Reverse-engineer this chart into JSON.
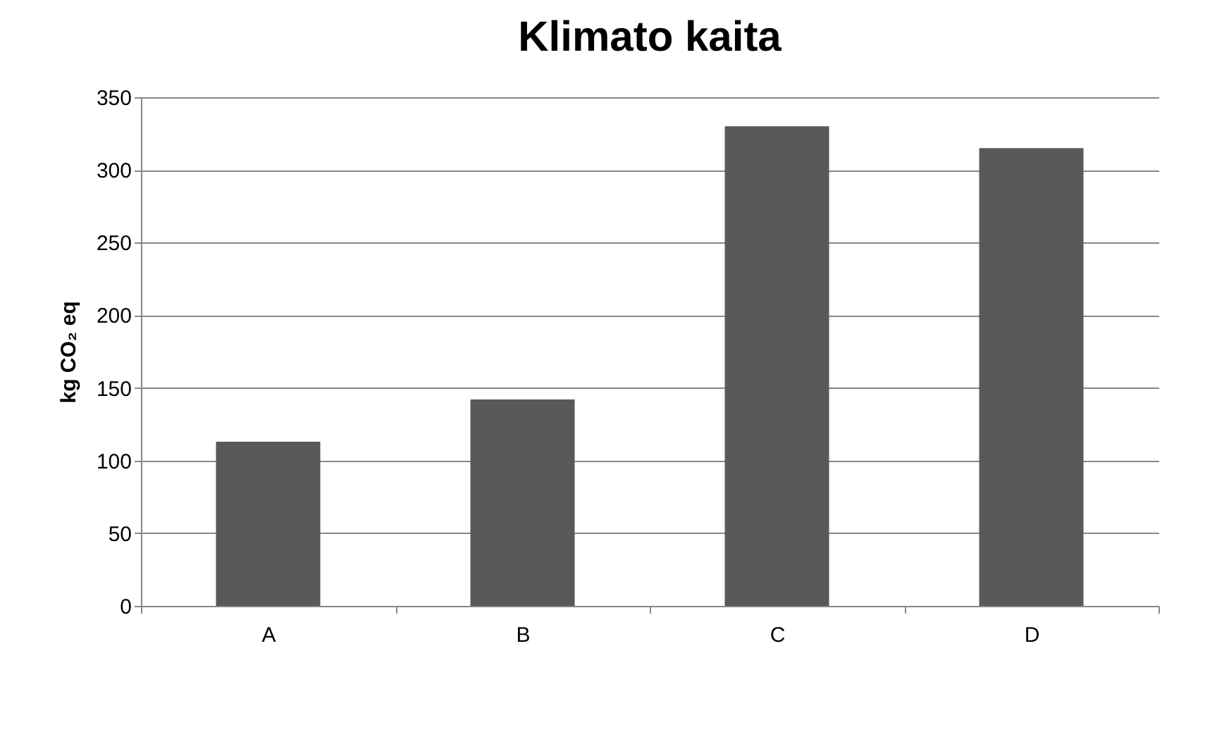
{
  "chart_data": {
    "type": "bar",
    "title": "Klimato kaita",
    "ylabel": "kg CO₂ eq",
    "categories": [
      "A",
      "B",
      "C",
      "D"
    ],
    "values": [
      113,
      142,
      330,
      315
    ],
    "color": "#595959",
    "ylim": [
      0,
      350
    ],
    "yticks": [
      0,
      50,
      100,
      150,
      200,
      250,
      300,
      350
    ],
    "grid": "y"
  }
}
